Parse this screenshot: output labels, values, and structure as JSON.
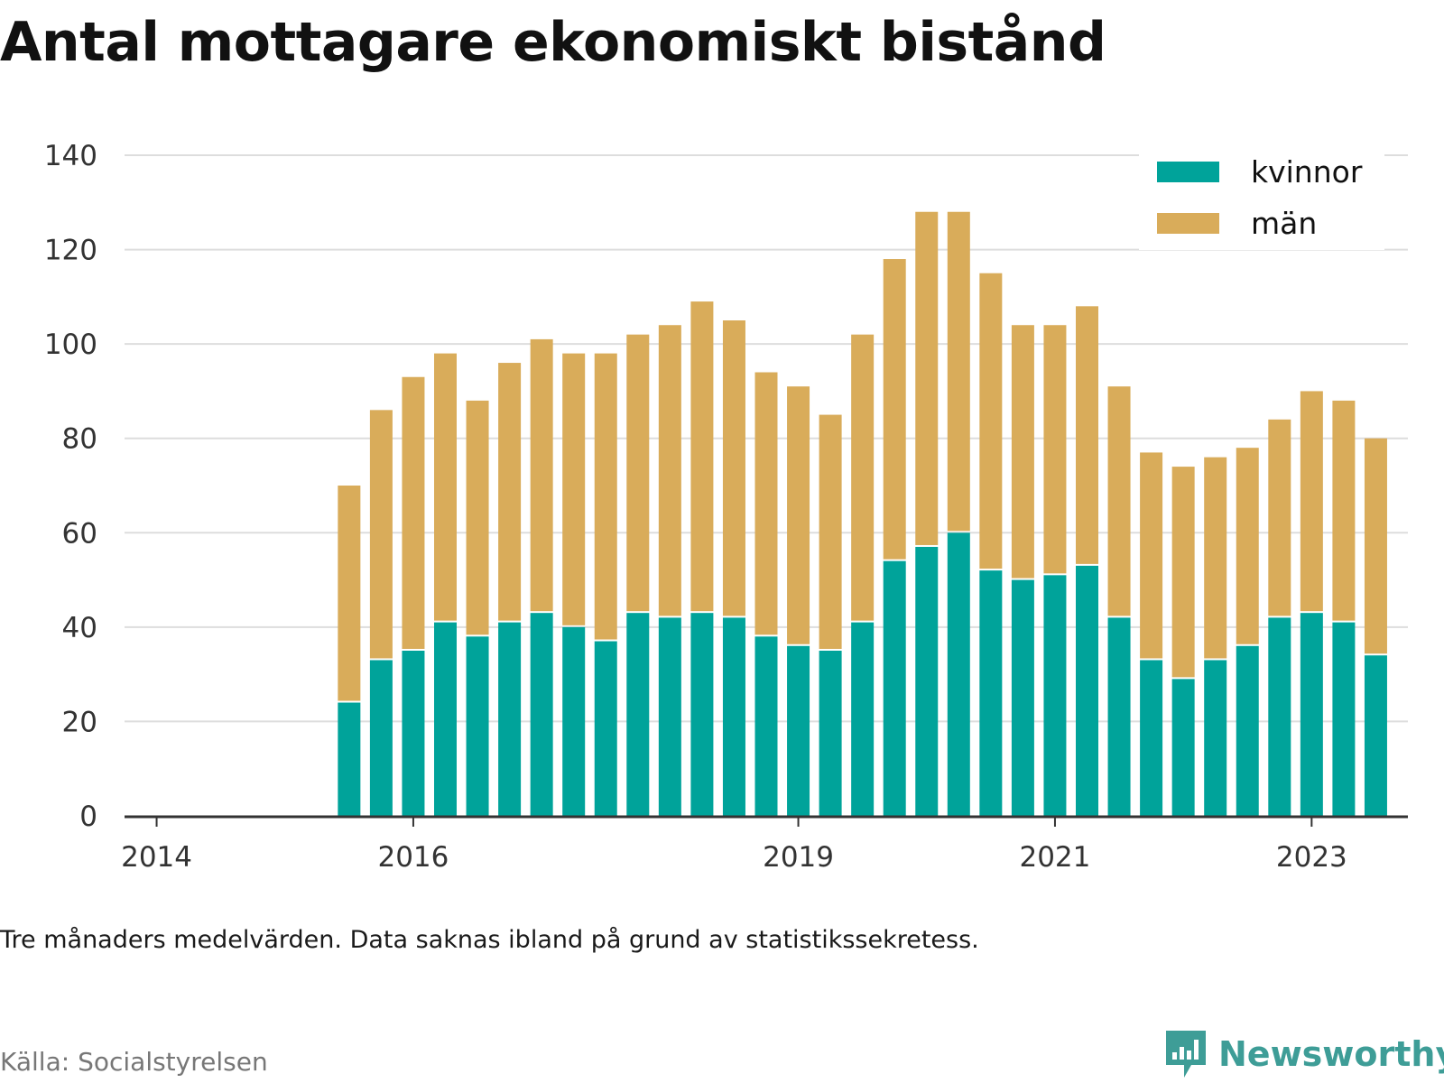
{
  "title": "Antal mottagare ekonomiskt bistånd",
  "note": "Tre månaders medelvärden. Data saknas ibland på grund av statistikssekretess.",
  "source": "Källa: Socialstyrelsen",
  "brand": "Newsworthy",
  "colors": {
    "kvinnor": "#00a39a",
    "man": "#d9ac5a",
    "grid": "#dddddd",
    "axis": "#333333",
    "brand": "#3e9d97"
  },
  "chart_data": {
    "type": "bar",
    "stacked": true,
    "x": [
      2015.75,
      2016.0,
      2016.25,
      2016.5,
      2016.75,
      2017.0,
      2017.25,
      2017.5,
      2017.75,
      2018.0,
      2018.25,
      2018.5,
      2018.75,
      2019.0,
      2019.25,
      2019.5,
      2019.75,
      2020.0,
      2020.25,
      2020.5,
      2020.75,
      2021.0,
      2021.25,
      2021.5,
      2021.75,
      2022.0,
      2022.25,
      2022.5,
      2022.75,
      2023.0,
      2023.25,
      2023.5,
      2023.75
    ],
    "series": [
      {
        "name": "kvinnor",
        "values": [
          24,
          33,
          35,
          41,
          38,
          41,
          43,
          40,
          37,
          43,
          42,
          43,
          42,
          38,
          36,
          35,
          41,
          54,
          57,
          60,
          52,
          50,
          51,
          53,
          42,
          33,
          29,
          33,
          36,
          42,
          43,
          41,
          34
        ]
      },
      {
        "name": "män",
        "values": [
          46,
          53,
          58,
          57,
          50,
          55,
          58,
          58,
          61,
          59,
          62,
          66,
          63,
          56,
          55,
          50,
          61,
          64,
          71,
          68,
          63,
          54,
          53,
          55,
          49,
          44,
          45,
          43,
          42,
          42,
          47,
          47,
          46
        ]
      }
    ],
    "ylim": [
      0,
      140
    ],
    "yticks": [
      0,
      20,
      40,
      60,
      80,
      100,
      120,
      140
    ],
    "xlim": [
      2014.0,
      2024.0
    ],
    "xticks": [
      {
        "value": 2014.25,
        "label": "2014"
      },
      {
        "value": 2016.25,
        "label": "2016"
      },
      {
        "value": 2019.25,
        "label": "2019"
      },
      {
        "value": 2021.25,
        "label": "2021"
      },
      {
        "value": 2023.25,
        "label": "2023"
      }
    ],
    "grid": true,
    "legend": {
      "position": "top-right",
      "items": [
        "kvinnor",
        "män"
      ]
    }
  }
}
